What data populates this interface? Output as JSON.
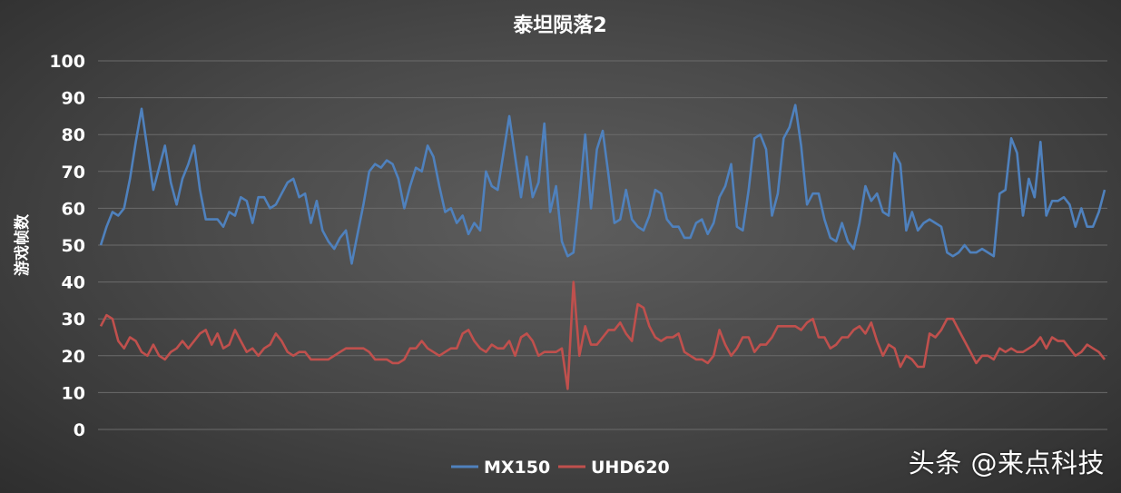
{
  "colors": {
    "mx150": "#4f81bd",
    "uhd620": "#c0504d",
    "text": "#ffffff",
    "grid": "#6b6b6b"
  },
  "watermark": "头条 @来点科技",
  "chart_data": {
    "type": "line",
    "title": "泰坦陨落2",
    "ylabel": "游戏帧数",
    "xlabel": "",
    "ylim": [
      0,
      100
    ],
    "yticks": [
      0,
      10,
      20,
      30,
      40,
      50,
      60,
      70,
      80,
      90,
      100
    ],
    "grid": true,
    "legend": "bottom",
    "series": [
      {
        "name": "MX150",
        "values": [
          50,
          55,
          59,
          58,
          60,
          68,
          78,
          87,
          76,
          65,
          71,
          77,
          67,
          61,
          68,
          72,
          77,
          65,
          57,
          57,
          57,
          55,
          59,
          58,
          63,
          62,
          56,
          63,
          63,
          60,
          61,
          64,
          67,
          68,
          63,
          64,
          56,
          62,
          54,
          51,
          49,
          52,
          54,
          45,
          53,
          61,
          70,
          72,
          71,
          73,
          72,
          68,
          60,
          66,
          71,
          70,
          77,
          74,
          66,
          59,
          60,
          56,
          58,
          53,
          56,
          54,
          70,
          66,
          65,
          75,
          85,
          74,
          63,
          74,
          63,
          67,
          83,
          59,
          66,
          51,
          47,
          48,
          63,
          80,
          60,
          76,
          81,
          69,
          56,
          57,
          65,
          57,
          55,
          54,
          58,
          65,
          64,
          57,
          55,
          55,
          52,
          52,
          56,
          57,
          53,
          56,
          63,
          66,
          72,
          55,
          54,
          65,
          79,
          80,
          76,
          58,
          64,
          79,
          82,
          88,
          77,
          61,
          64,
          64,
          57,
          52,
          51,
          56,
          51,
          49,
          56,
          66,
          62,
          64,
          59,
          58,
          75,
          72,
          54,
          59,
          54,
          56,
          57,
          56,
          55,
          48,
          47,
          48,
          50,
          48,
          48,
          49,
          48,
          47,
          64,
          65,
          79,
          75,
          58,
          68,
          63,
          78,
          58,
          62,
          62,
          63,
          61,
          55,
          60,
          55,
          55,
          59,
          65
        ]
      },
      {
        "name": "UHD620",
        "values": [
          28,
          31,
          30,
          24,
          22,
          25,
          24,
          21,
          20,
          23,
          20,
          19,
          21,
          22,
          24,
          22,
          24,
          26,
          27,
          23,
          26,
          22,
          23,
          27,
          24,
          21,
          22,
          20,
          22,
          23,
          26,
          24,
          21,
          20,
          21,
          21,
          19,
          19,
          19,
          19,
          20,
          21,
          22,
          22,
          22,
          22,
          21,
          19,
          19,
          19,
          18,
          18,
          19,
          22,
          22,
          24,
          22,
          21,
          20,
          21,
          22,
          22,
          26,
          27,
          24,
          22,
          21,
          23,
          22,
          22,
          24,
          20,
          25,
          26,
          24,
          20,
          21,
          21,
          21,
          22,
          11,
          40,
          20,
          28,
          23,
          23,
          25,
          27,
          27,
          29,
          26,
          24,
          34,
          33,
          28,
          25,
          24,
          25,
          25,
          26,
          21,
          20,
          19,
          19,
          18,
          20,
          27,
          23,
          20,
          22,
          25,
          25,
          21,
          23,
          23,
          25,
          28,
          28,
          28,
          28,
          27,
          29,
          30,
          25,
          25,
          22,
          23,
          25,
          25,
          27,
          28,
          26,
          29,
          24,
          20,
          23,
          22,
          17,
          20,
          19,
          17,
          17,
          26,
          25,
          27,
          30,
          30,
          27,
          24,
          21,
          18,
          20,
          20,
          19,
          22,
          21,
          22,
          21,
          21,
          22,
          23,
          25,
          22,
          25,
          24,
          24,
          22,
          20,
          21,
          23,
          22,
          21,
          19
        ]
      }
    ]
  }
}
